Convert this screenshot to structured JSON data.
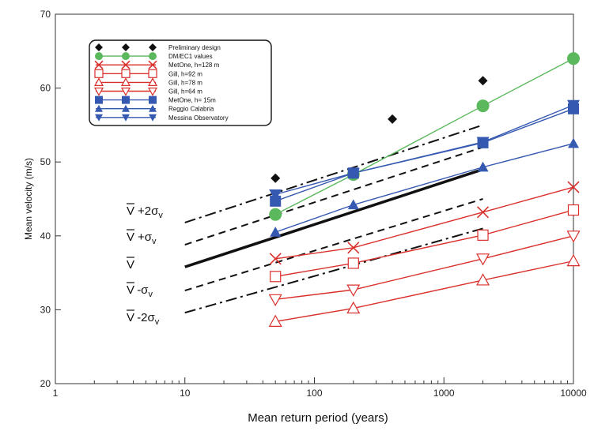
{
  "chart_data": {
    "type": "line",
    "xlabel": "Mean return period (years)",
    "ylabel": "Mean velocity (m/s)",
    "x_scale": "log",
    "xlim": [
      1,
      10000
    ],
    "ylim": [
      20,
      70
    ],
    "x_ticks": [
      "1",
      "10",
      "100",
      "1000",
      "10000"
    ],
    "y_ticks": [
      "20",
      "30",
      "40",
      "50",
      "60",
      "70"
    ],
    "grid": false,
    "legend_position": "top-left",
    "series": [
      {
        "name": "Preliminary design",
        "color": "#111111",
        "marker": "diamond",
        "line": "none",
        "x": [
          50,
          400,
          2000
        ],
        "y": [
          47.8,
          55.8,
          61.0
        ]
      },
      {
        "name": "DM/EC1 values",
        "color": "#5cb85c",
        "marker": "circle",
        "line": "solid",
        "x": [
          50,
          200,
          2000,
          10000
        ],
        "y": [
          42.9,
          48.3,
          57.6,
          64.0
        ]
      },
      {
        "name": "MetOne, h=128 m",
        "color": "#d9302c",
        "marker": "x",
        "line": "solid",
        "x": [
          50,
          200,
          2000,
          10000
        ],
        "y": [
          36.9,
          38.4,
          43.2,
          46.6
        ]
      },
      {
        "name": "Gill, h=92 m",
        "color": "#d9302c",
        "marker": "square-open",
        "line": "solid",
        "x": [
          50,
          200,
          2000,
          10000
        ],
        "y": [
          34.5,
          36.3,
          40.1,
          43.5
        ]
      },
      {
        "name": "Gill, h=78 m",
        "color": "#d9302c",
        "marker": "triangle-up-open",
        "line": "solid",
        "x": [
          50,
          200,
          2000,
          10000
        ],
        "y": [
          28.4,
          30.2,
          34.0,
          36.6
        ]
      },
      {
        "name": "Gill, h=64 m",
        "color": "#d9302c",
        "marker": "triangle-down-open",
        "line": "solid",
        "x": [
          50,
          200,
          2000,
          10000
        ],
        "y": [
          31.4,
          32.7,
          36.9,
          40.0
        ]
      },
      {
        "name": "MetOne, h= 15m",
        "color": "#3558b0",
        "marker": "square",
        "line": "solid",
        "x": [
          50,
          200,
          2000,
          10000
        ],
        "y": [
          44.7,
          48.5,
          52.6,
          57.2
        ]
      },
      {
        "name": "Reggio Calabria",
        "color": "#3558b0",
        "marker": "triangle-up",
        "line": "solid",
        "x": [
          50,
          200,
          2000,
          10000
        ],
        "y": [
          40.5,
          44.2,
          49.3,
          52.5
        ]
      },
      {
        "name": "Messina Observatory",
        "color": "#3558b0",
        "marker": "triangle-down",
        "line": "solid",
        "x": [
          50,
          200,
          2000,
          10000
        ],
        "y": [
          45.6,
          48.5,
          52.7,
          57.7
        ]
      }
    ],
    "bands": [
      {
        "label_main": "V",
        "label_suffix": "+2σ",
        "label_sub": "v",
        "style": "dashdot",
        "x": [
          10,
          2000
        ],
        "y": [
          41.8,
          55.0
        ]
      },
      {
        "label_main": "V",
        "label_suffix": "+σ",
        "label_sub": "v",
        "style": "dash",
        "x": [
          10,
          2000
        ],
        "y": [
          38.8,
          52.0
        ]
      },
      {
        "label_main": "V",
        "label_suffix": "",
        "label_sub": "",
        "style": "solid-thick",
        "x": [
          10,
          2000
        ],
        "y": [
          35.8,
          49.0
        ]
      },
      {
        "label_main": "V",
        "label_suffix": "-σ",
        "label_sub": "v",
        "style": "dash",
        "x": [
          10,
          2000
        ],
        "y": [
          32.6,
          45.0
        ]
      },
      {
        "label_main": "V",
        "label_suffix": "-2σ",
        "label_sub": "v",
        "style": "dashdot",
        "x": [
          10,
          2000
        ],
        "y": [
          29.6,
          41.0
        ]
      }
    ]
  }
}
